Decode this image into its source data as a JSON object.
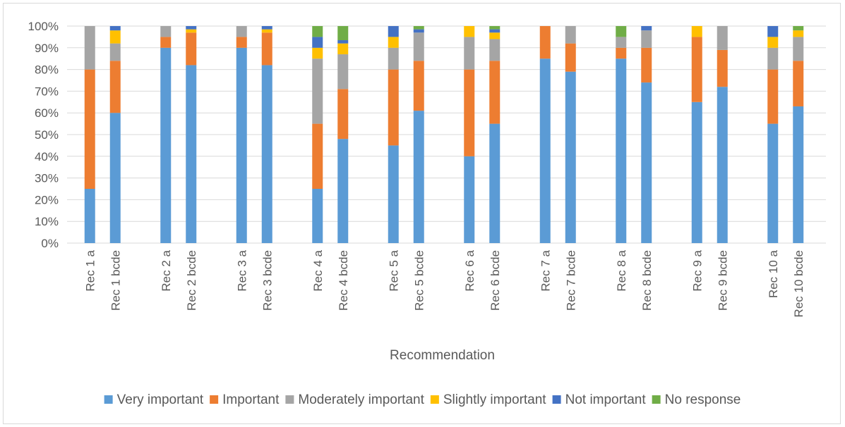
{
  "chart_data": {
    "type": "bar",
    "stacked": true,
    "percent": true,
    "xlabel": "Recommendation",
    "ylabel": "",
    "ylim": [
      0,
      100
    ],
    "yticks": [
      "0%",
      "10%",
      "20%",
      "30%",
      "40%",
      "50%",
      "60%",
      "70%",
      "80%",
      "90%",
      "100%"
    ],
    "legend_position": "bottom",
    "grid": true,
    "groups": [
      [
        "Rec 1 a",
        "Rec 1 bcde"
      ],
      [
        "Rec 2 a",
        "Rec 2 bcde"
      ],
      [
        "Rec 3 a",
        "Rec 3 bcde"
      ],
      [
        "Rec 4 a",
        "Rec 4 bcde"
      ],
      [
        "Rec 5 a",
        "Rec 5 bcde"
      ],
      [
        "Rec 6 a",
        "Rec 6 bcde"
      ],
      [
        "Rec 7 a",
        "Rec 7 bcde"
      ],
      [
        "Rec 8 a",
        "Rec 8 bcde"
      ],
      [
        "Rec 9 a",
        "Rec 9 bcde"
      ],
      [
        "Rec 10 a",
        "Rec 10 bcde"
      ]
    ],
    "categories": [
      "Rec 1 a",
      "Rec 1 bcde",
      "Rec 2 a",
      "Rec 2 bcde",
      "Rec 3 a",
      "Rec 3 bcde",
      "Rec 4 a",
      "Rec 4 bcde",
      "Rec 5 a",
      "Rec 5 bcde",
      "Rec 6 a",
      "Rec 6 bcde",
      "Rec 7 a",
      "Rec 7 bcde",
      "Rec 8 a",
      "Rec 8 bcde",
      "Rec 9 a",
      "Rec 9 bcde",
      "Rec 10 a",
      "Rec 10 bcde"
    ],
    "series": [
      {
        "name": "Very important",
        "color": "#5b9bd5",
        "values": [
          25,
          60,
          90,
          82,
          90,
          82,
          25,
          48,
          45,
          61,
          40,
          55,
          85,
          79,
          85,
          74,
          65,
          72,
          55,
          63
        ]
      },
      {
        "name": "Important",
        "color": "#ed7d31",
        "values": [
          55,
          24,
          5,
          15,
          5,
          15,
          30,
          23,
          35,
          23,
          40,
          29,
          15,
          13,
          5,
          16,
          30,
          17,
          25,
          21
        ]
      },
      {
        "name": "Moderately important",
        "color": "#a5a5a5",
        "values": [
          20,
          8,
          5,
          0,
          5,
          0,
          30,
          16,
          10,
          13,
          15,
          10,
          0,
          8,
          5,
          8,
          0,
          11,
          10,
          11
        ]
      },
      {
        "name": "Slightly important",
        "color": "#ffc000",
        "values": [
          0,
          6,
          0,
          1.5,
          0,
          1.5,
          5,
          5,
          5,
          0,
          5,
          3,
          0,
          0,
          0,
          0,
          5,
          0,
          5,
          3
        ]
      },
      {
        "name": "Not important",
        "color": "#4472c4",
        "values": [
          0,
          2,
          0,
          1.5,
          0,
          1.5,
          5,
          1.5,
          5,
          1.5,
          0,
          1.5,
          0,
          0,
          0,
          2,
          0,
          0,
          5,
          0
        ]
      },
      {
        "name": "No response",
        "color": "#70ad47",
        "values": [
          0,
          0,
          0,
          0,
          0,
          0,
          5,
          6.5,
          0,
          1.5,
          0,
          1.5,
          0,
          0,
          5,
          0,
          0,
          0,
          0,
          2
        ]
      }
    ]
  }
}
